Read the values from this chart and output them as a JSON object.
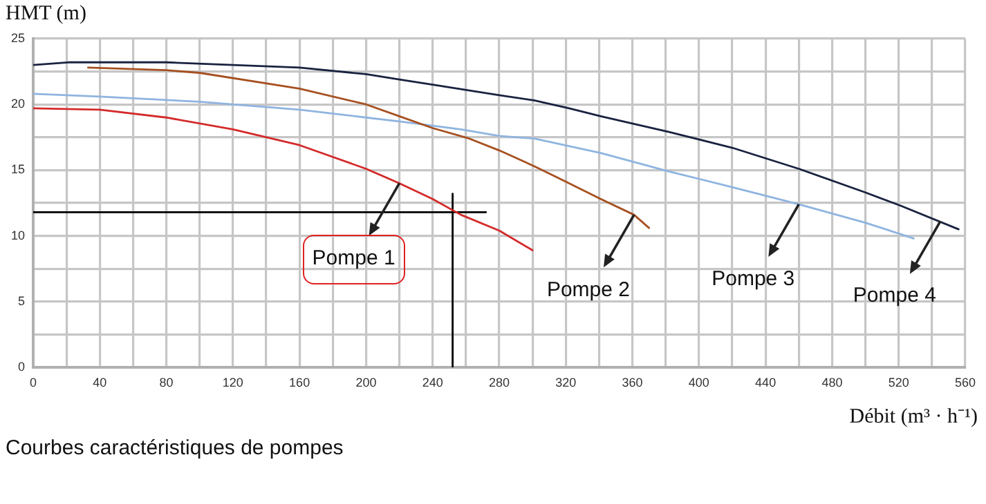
{
  "chart_data": {
    "type": "line",
    "title": "Courbes caractéristiques de pompes",
    "xlabel": "Débit (m³ · h⁻¹)",
    "ylabel": "HMT (m)",
    "xlim": [
      0,
      560
    ],
    "ylim": [
      0,
      25
    ],
    "xticks": [
      0,
      {
        "value": 20,
        "label": null
      },
      40,
      {
        "value": 60,
        "label": null
      },
      80,
      {
        "value": 100,
        "label": null
      },
      120,
      {
        "value": 140,
        "label": null
      },
      160,
      {
        "value": 180,
        "label": null
      },
      200,
      {
        "value": 220,
        "label": null
      },
      240,
      {
        "value": 260,
        "label": null
      },
      280,
      {
        "value": 300,
        "label": null
      },
      320,
      {
        "value": 340,
        "label": null
      },
      360,
      {
        "value": 380,
        "label": null
      },
      400,
      {
        "value": 420,
        "label": null
      },
      440,
      {
        "value": 460,
        "label": null
      },
      480,
      {
        "value": 500,
        "label": null
      },
      520,
      {
        "value": 540,
        "label": null
      },
      560
    ],
    "yticks": [
      0,
      {
        "value": 2.5,
        "label": null
      },
      5,
      {
        "value": 7.5,
        "label": null
      },
      10,
      {
        "value": 12.5,
        "label": null
      },
      15,
      {
        "value": 17.5,
        "label": null
      },
      20,
      {
        "value": 22.5,
        "label": null
      },
      25
    ],
    "grid": true,
    "series": [
      {
        "color": "#d42a2a",
        "x": [
          0,
          40,
          80,
          120,
          160,
          200,
          220,
          240,
          257,
          280,
          300
        ],
        "values": [
          19.7,
          19.6,
          19.0,
          18.1,
          16.9,
          15.1,
          14.0,
          12.8,
          11.6,
          10.4,
          8.9
        ]
      },
      {
        "color": "#a65020",
        "x": [
          33,
          80,
          100,
          160,
          200,
          220,
          240,
          262,
          280,
          301,
          322,
          341,
          361,
          370
        ],
        "values": [
          22.8,
          22.6,
          22.4,
          21.2,
          20.0,
          19.1,
          18.2,
          17.4,
          16.5,
          15.3,
          14.0,
          12.8,
          11.6,
          10.6
        ]
      },
      {
        "color": "#8fb4e0",
        "x": [
          0,
          40,
          100,
          160,
          200,
          220,
          257,
          280,
          301,
          341,
          382,
          420,
          460,
          500,
          529
        ],
        "values": [
          20.8,
          20.6,
          20.2,
          19.6,
          19.0,
          18.7,
          18.1,
          17.6,
          17.4,
          16.3,
          14.9,
          13.7,
          12.4,
          11.0,
          9.8
        ]
      },
      {
        "color": "#1a2240",
        "x": [
          0,
          21,
          80,
          120,
          160,
          200,
          220,
          240,
          280,
          301,
          322,
          341,
          382,
          420,
          460,
          500,
          521,
          556
        ],
        "values": [
          23.0,
          23.2,
          23.2,
          23.0,
          22.8,
          22.3,
          21.9,
          21.5,
          20.7,
          20.3,
          19.7,
          19.1,
          17.9,
          16.7,
          15.1,
          13.3,
          12.3,
          10.5
        ]
      },
      {
        "color": "#000000",
        "x": [
          0,
          272
        ],
        "values": [
          11.8,
          11.8
        ]
      },
      {
        "color": "#000000",
        "x": [
          252,
          252
        ],
        "values": [
          0,
          13.2
        ]
      }
    ],
    "annotations": [
      {
        "text": "Pompe 1",
        "x": 220,
        "y": 14.0
      },
      {
        "text": "Pompe 2",
        "x": 361,
        "y": 11.6
      },
      {
        "text": "Pompe 3",
        "x": 460,
        "y": 12.4
      },
      {
        "text": "Pompe 4",
        "x": 545,
        "y": 11.1
      }
    ]
  }
}
